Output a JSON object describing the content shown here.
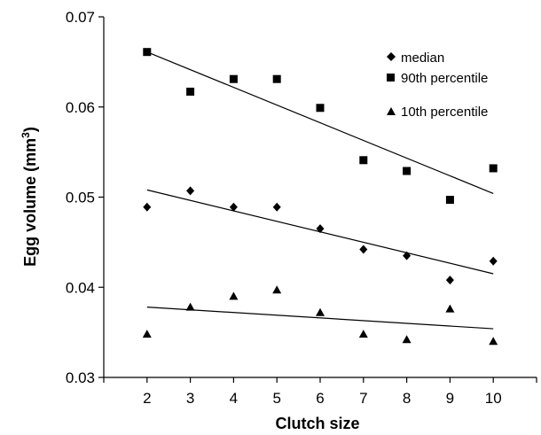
{
  "chart_data": {
    "type": "scatter",
    "xlabel": "Clutch size",
    "ylabel": "Egg volume (mm",
    "ylabel_sup": "3",
    "ylabel_close": ")",
    "xlim": [
      1,
      11
    ],
    "ylim": [
      0.03,
      0.07
    ],
    "x_ticks": [
      "2",
      "3",
      "4",
      "5",
      "6",
      "7",
      "8",
      "9",
      "10"
    ],
    "y_ticks": [
      "0.03",
      "0.04",
      "0.05",
      "0.06",
      "0.07"
    ],
    "x": [
      2,
      3,
      4,
      5,
      6,
      7,
      8,
      9,
      10
    ],
    "legend_position": "top-right",
    "series": [
      {
        "name": "median",
        "marker": "diamond",
        "values": [
          0.0489,
          0.0507,
          0.0489,
          0.0489,
          0.0465,
          0.0442,
          0.0435,
          0.0408,
          0.0429
        ],
        "trend": [
          0.0508,
          0.0415
        ]
      },
      {
        "name": "90th percentile",
        "marker": "square",
        "values": [
          0.0661,
          0.0617,
          0.0631,
          0.0631,
          0.0599,
          0.0541,
          0.0529,
          0.0497,
          0.0532
        ],
        "trend": [
          0.0661,
          0.0504
        ]
      },
      {
        "name": "10th percentile",
        "marker": "triangle",
        "values": [
          0.0348,
          0.0378,
          0.039,
          0.0397,
          0.0372,
          0.0348,
          0.0342,
          0.0376,
          0.034
        ],
        "trend": [
          0.0378,
          0.0354
        ]
      }
    ],
    "grid": false,
    "colors": {
      "marker": "#000000",
      "line": "#000000"
    }
  }
}
